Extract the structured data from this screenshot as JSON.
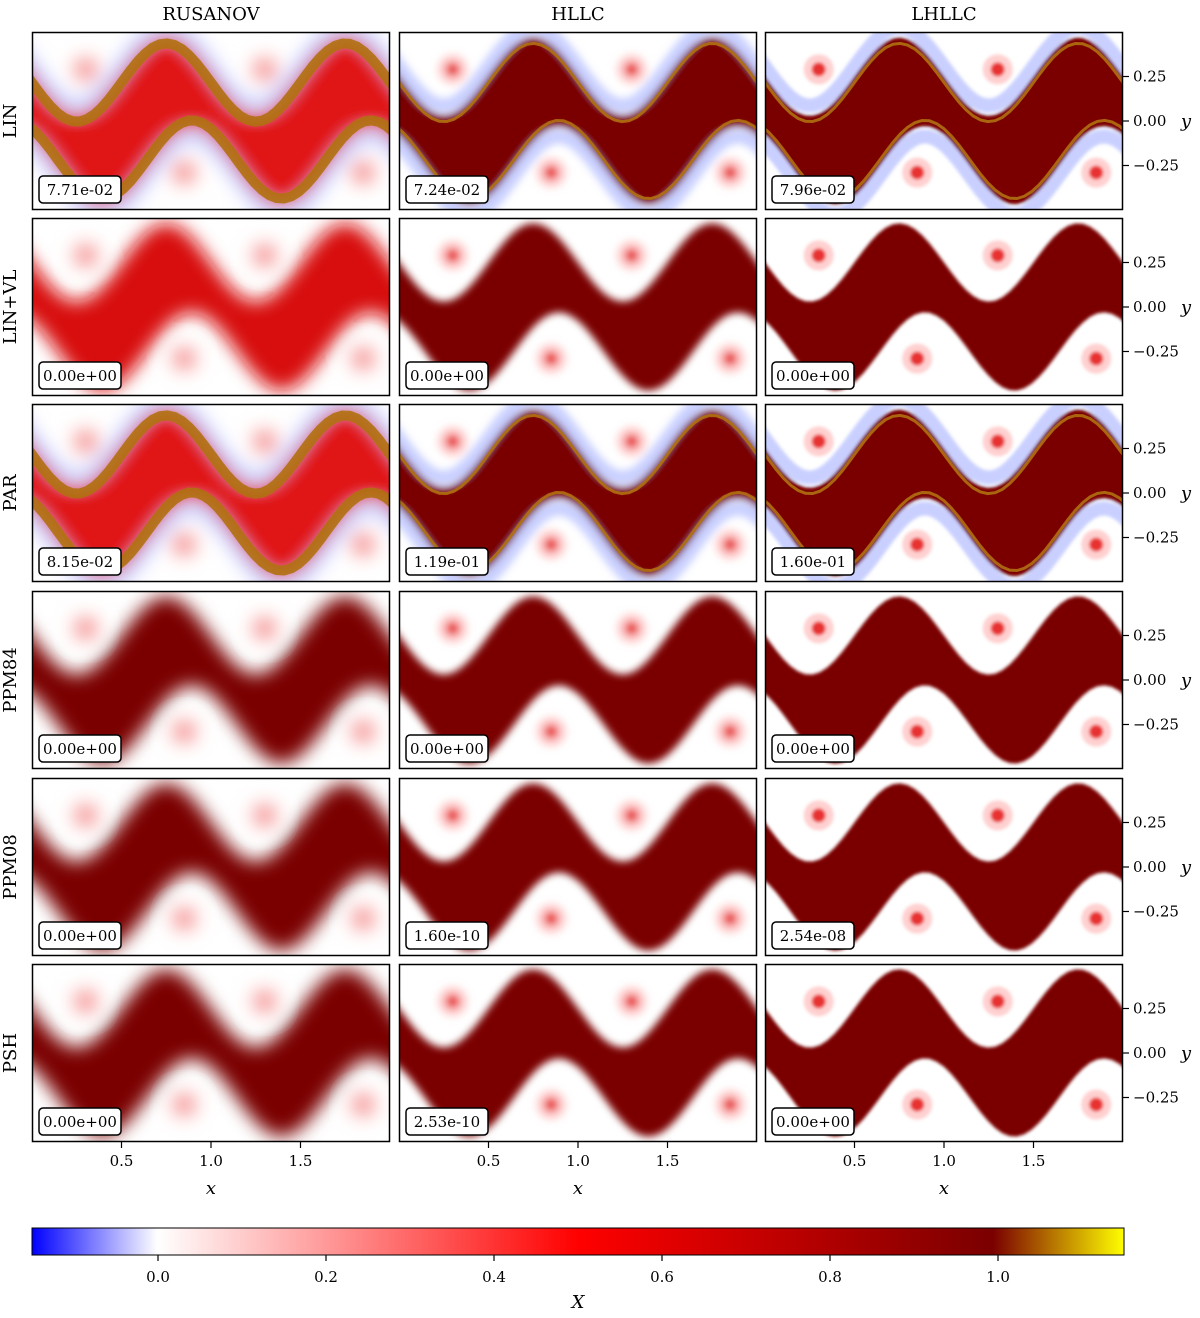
{
  "chart_data": {
    "type": "heatmap",
    "columns": [
      "RUSANOV",
      "HLLC",
      "LHLLC"
    ],
    "rows": [
      {
        "label": "LIN",
        "errors": [
          "7.71e-02",
          "7.24e-02",
          "7.96e-02"
        ],
        "overshoot": [
          true,
          true,
          true
        ]
      },
      {
        "label": "LIN+VL",
        "errors": [
          "0.00e+00",
          "0.00e+00",
          "0.00e+00"
        ],
        "overshoot": [
          false,
          false,
          false
        ]
      },
      {
        "label": "PAR",
        "errors": [
          "8.15e-02",
          "1.19e-01",
          "1.60e-01"
        ],
        "overshoot": [
          true,
          true,
          true
        ]
      },
      {
        "label": "PPM84",
        "errors": [
          "0.00e+00",
          "0.00e+00",
          "0.00e+00"
        ],
        "overshoot": [
          false,
          false,
          false
        ]
      },
      {
        "label": "PPM08",
        "errors": [
          "0.00e+00",
          "1.60e-10",
          "2.54e-08"
        ],
        "overshoot": [
          false,
          false,
          false
        ]
      },
      {
        "label": "PSH",
        "errors": [
          "0.00e+00",
          "2.53e-10",
          "0.00e+00"
        ],
        "overshoot": [
          false,
          false,
          false
        ]
      }
    ],
    "xlabel": "x",
    "ylabel": "y",
    "xlim": [
      0,
      2
    ],
    "ylim": [
      -0.5,
      0.5
    ],
    "xticks": [
      0.5,
      1.0,
      1.5
    ],
    "xtick_labels": [
      "0.5",
      "1.0",
      "1.5"
    ],
    "yticks": [
      0.25,
      0.0,
      -0.25
    ],
    "ytick_labels": [
      "0.25",
      "0.00",
      "−0.25"
    ],
    "colorbar": {
      "label": "X",
      "range": [
        -0.15,
        1.15
      ],
      "ticks": [
        0.0,
        0.2,
        0.4,
        0.6,
        0.8,
        1.0
      ],
      "tick_labels": [
        "0.0",
        "0.2",
        "0.4",
        "0.6",
        "0.8",
        "1.0"
      ],
      "colors": [
        "#0000ff",
        "#ffffff",
        "#ff0000",
        "#7a0000",
        "#ffff00"
      ]
    }
  }
}
